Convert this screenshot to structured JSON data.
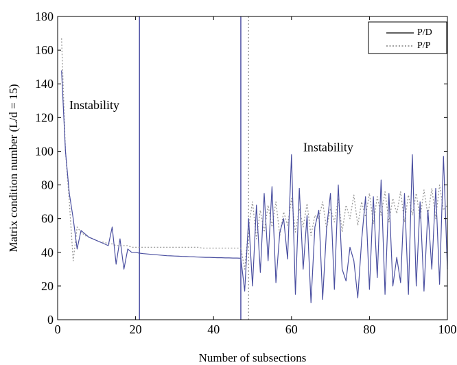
{
  "chart_data": {
    "type": "line",
    "title": "",
    "xlabel": "Number of subsections",
    "ylabel": "Matrix condition number (L/d = 15)",
    "xlim": [
      0,
      100
    ],
    "ylim": [
      0,
      180
    ],
    "xticks": [
      0,
      20,
      40,
      60,
      80,
      100
    ],
    "yticks": [
      0,
      20,
      40,
      60,
      80,
      100,
      120,
      140,
      160,
      180
    ],
    "grid": false,
    "legend_position": "top-right",
    "colors": {
      "pd": "#4a4fa0",
      "pp": "#9a9a9a",
      "vlines": "#5558a8"
    },
    "series": [
      {
        "name": "P/D",
        "style": "solid",
        "x": [
          1,
          2,
          3,
          4,
          5,
          6,
          7,
          8,
          9,
          10,
          11,
          12,
          13,
          14,
          15,
          16,
          17,
          18,
          19,
          20,
          21,
          22,
          23,
          24,
          25,
          26,
          27,
          28,
          29,
          30,
          31,
          32,
          33,
          34,
          35,
          36,
          37,
          38,
          39,
          40,
          41,
          42,
          43,
          44,
          45,
          46,
          47,
          48,
          49,
          50,
          51,
          52,
          53,
          54,
          55,
          56,
          57,
          58,
          59,
          60,
          61,
          62,
          63,
          64,
          65,
          66,
          67,
          68,
          69,
          70,
          71,
          72,
          73,
          74,
          75,
          76,
          77,
          78,
          79,
          80,
          81,
          82,
          83,
          84,
          85,
          86,
          87,
          88,
          89,
          90,
          91,
          92,
          93,
          94,
          95,
          96,
          97,
          98,
          99,
          100
        ],
        "y": [
          148,
          100,
          75,
          60,
          42,
          53,
          51,
          49,
          48,
          47,
          46,
          45,
          44,
          55,
          33,
          48,
          30,
          42,
          40,
          40,
          39.5,
          39.2,
          39,
          38.8,
          38.6,
          38.4,
          38.2,
          38,
          37.9,
          37.8,
          37.7,
          37.6,
          37.5,
          37.4,
          37.3,
          37.2,
          37.1,
          37,
          37,
          36.9,
          36.8,
          36.8,
          36.7,
          36.7,
          36.6,
          36.6,
          36.5,
          17,
          60,
          20,
          68,
          28,
          75,
          35,
          79,
          22,
          52,
          60,
          36,
          98,
          15,
          78,
          30,
          62,
          10,
          55,
          65,
          12,
          54,
          75,
          18,
          80,
          30,
          23,
          43,
          35,
          13,
          47,
          73,
          18,
          73,
          25,
          83,
          15,
          75,
          20,
          37,
          22,
          75,
          15,
          98,
          20,
          70,
          17,
          65,
          30,
          78,
          21,
          97,
          30
        ]
      },
      {
        "name": "P/P",
        "style": "dotted",
        "x": [
          1,
          2,
          3,
          4,
          5,
          6,
          7,
          8,
          9,
          10,
          11,
          12,
          13,
          14,
          15,
          16,
          17,
          18,
          19,
          20,
          21,
          22,
          23,
          24,
          25,
          26,
          27,
          28,
          29,
          30,
          31,
          32,
          33,
          34,
          35,
          36,
          37,
          38,
          39,
          40,
          41,
          42,
          43,
          44,
          45,
          46,
          47,
          48,
          49,
          50,
          51,
          52,
          53,
          54,
          55,
          56,
          57,
          58,
          59,
          60,
          61,
          62,
          63,
          64,
          65,
          66,
          67,
          68,
          69,
          70,
          71,
          72,
          73,
          74,
          75,
          76,
          77,
          78,
          79,
          80,
          81,
          82,
          83,
          84,
          85,
          86,
          87,
          88,
          89,
          90,
          91,
          92,
          93,
          94,
          95,
          96,
          97,
          98,
          99,
          100
        ],
        "y": [
          167,
          100,
          70,
          35,
          55,
          52,
          50,
          49,
          48,
          47,
          46,
          46,
          45,
          45,
          44,
          44,
          44,
          44,
          43,
          43,
          43,
          43,
          43,
          43,
          43,
          43,
          43,
          43,
          43,
          43,
          43,
          43,
          43,
          43,
          43,
          43,
          42.5,
          42.5,
          42.5,
          42.5,
          42.5,
          42.5,
          42.5,
          42.5,
          42.5,
          42.5,
          42.5,
          30,
          55,
          70,
          48,
          65,
          52,
          68,
          55,
          70,
          50,
          64,
          56,
          72,
          52,
          66,
          55,
          69,
          50,
          62,
          60,
          70,
          54,
          66,
          58,
          72,
          52,
          68,
          60,
          74,
          56,
          70,
          61,
          75,
          57,
          73,
          62,
          76,
          58,
          72,
          63,
          76,
          58,
          74,
          62,
          75,
          60,
          77,
          62,
          78,
          60,
          80,
          65,
          68
        ]
      }
    ],
    "vertical_lines": [
      {
        "x": 21,
        "style": "solid"
      },
      {
        "x": 47,
        "style": "solid"
      },
      {
        "x": 49,
        "style": "dotted"
      }
    ],
    "annotations": [
      {
        "text": "Instability",
        "x": 3,
        "y": 125
      },
      {
        "text": "Instability",
        "x": 63,
        "y": 100
      }
    ]
  }
}
